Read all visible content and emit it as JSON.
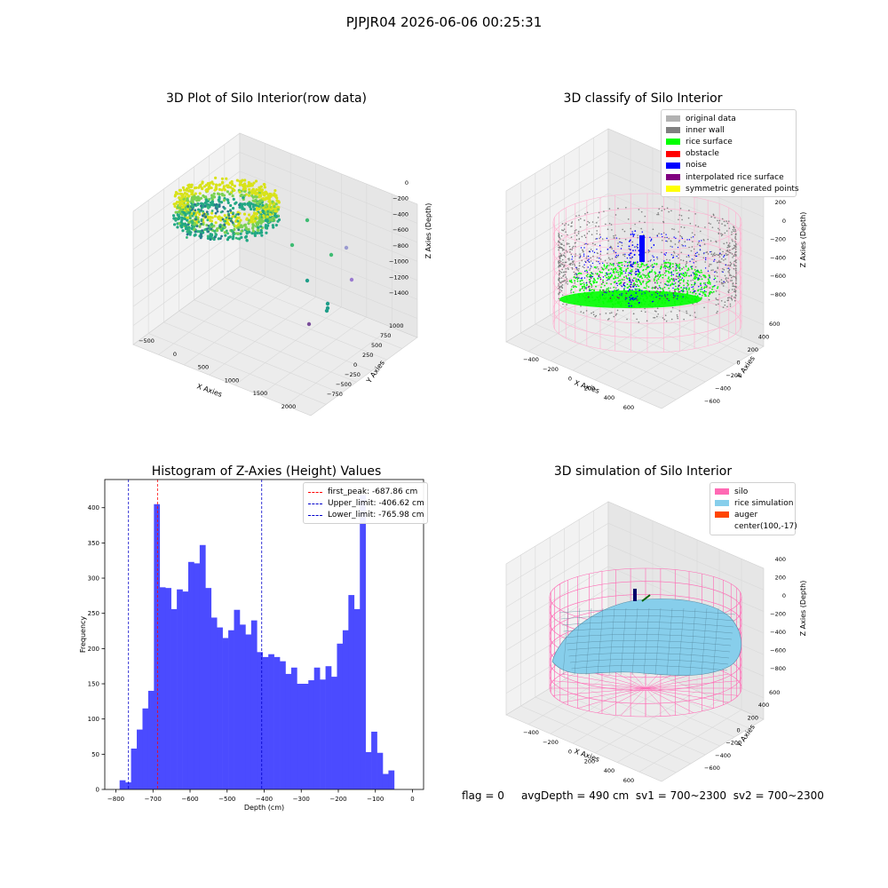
{
  "suptitle": "PJPJR04 2026-06-06 00:25:31",
  "status": {
    "flag": "flag = 0",
    "avg_depth": "avgDepth = 490 cm",
    "sv1": "sv1 = 700~2300",
    "sv2": "sv2 = 700~2300"
  },
  "colors": {
    "original_data": "#b2b2b2",
    "inner_wall": "#808080",
    "rice_surface": "#00ff00",
    "obstacle": "#ff0000",
    "noise": "#0000ff",
    "interpolated_rice_surface": "#800080",
    "symmetric_generated_points": "#ffff00",
    "silo": "#ff69b4",
    "rice_simulation": "#87ceeb",
    "auger": "#ff4500",
    "histogram_bars": "#4b4bff",
    "first_peak_line": "#ff0000",
    "limit_lines": "#0000cc"
  },
  "panels": {
    "raw": {
      "title": "3D Plot of Silo Interior(row data)",
      "xlabel": "X Axies",
      "ylabel": "Y Axies",
      "zlabel": "Z Axies (Depth)",
      "xticks": [
        "-500",
        "0",
        "500",
        "1000",
        "1500",
        "2000"
      ],
      "yticks": [
        "-750",
        "-500",
        "-250",
        "0",
        "250",
        "500",
        "750",
        "1000"
      ],
      "zticks": [
        "0",
        "-200",
        "-400",
        "-600",
        "-800",
        "-1000",
        "-1200",
        "-1400"
      ]
    },
    "classify": {
      "title": "3D classify of Silo Interior",
      "xlabel": "X Axies",
      "ylabel": "Y Axies",
      "zlabel": "Z Axies (Depth)",
      "xticks": [
        "-400",
        "-200",
        "0",
        "200",
        "400",
        "600"
      ],
      "yticks": [
        "-600",
        "-400",
        "-200",
        "0",
        "200",
        "400",
        "600"
      ],
      "zticks": [
        "200",
        "0",
        "-200",
        "-400",
        "-600",
        "-800"
      ],
      "ztick_partial": "0",
      "legend": [
        {
          "label": "original data",
          "color_key": "original_data"
        },
        {
          "label": "inner wall",
          "color_key": "inner_wall"
        },
        {
          "label": "rice surface",
          "color_key": "rice_surface"
        },
        {
          "label": "obstacle",
          "color_key": "obstacle"
        },
        {
          "label": "noise",
          "color_key": "noise"
        },
        {
          "label": "interpolated rice surface",
          "color_key": "interpolated_rice_surface"
        },
        {
          "label": "symmetric generated points",
          "color_key": "symmetric_generated_points"
        }
      ]
    },
    "simulation": {
      "title": "3D simulation of Silo Interior",
      "xlabel": "X Axies",
      "ylabel": "Y Axies",
      "zlabel": "Z Axies (Depth)",
      "xticks": [
        "-400",
        "-200",
        "0",
        "200",
        "400",
        "600"
      ],
      "yticks": [
        "-600",
        "-400",
        "-200",
        "0",
        "200",
        "400",
        "600"
      ],
      "zticks": [
        "400",
        "200",
        "0",
        "-200",
        "-400",
        "-600",
        "-800"
      ],
      "legend": [
        {
          "label": "silo",
          "color_key": "silo"
        },
        {
          "label": "rice simulation",
          "color_key": "rice_simulation"
        },
        {
          "label": "auger",
          "color_key": "auger"
        },
        {
          "label": "center(100,-17)",
          "color_key": ""
        }
      ]
    }
  },
  "chart_data": {
    "type": "bar",
    "title": "Histogram of Z-Axies (Height) Values",
    "xlabel": "Depth (cm)",
    "ylabel": "Frequency",
    "xlim": [
      -830,
      30
    ],
    "ylim": [
      0,
      440
    ],
    "xticks": [
      -800,
      -700,
      -600,
      -500,
      -400,
      -300,
      -200,
      -100,
      0
    ],
    "yticks": [
      0,
      50,
      100,
      150,
      200,
      250,
      300,
      350,
      400
    ],
    "bin_start": -790,
    "bin_width": 15.43,
    "values": [
      13,
      10,
      58,
      85,
      115,
      140,
      405,
      287,
      286,
      256,
      284,
      281,
      323,
      321,
      347,
      286,
      244,
      230,
      215,
      226,
      255,
      234,
      220,
      240,
      195,
      188,
      192,
      188,
      182,
      164,
      173,
      150,
      150,
      155,
      173,
      156,
      175,
      160,
      207,
      226,
      276,
      256,
      418,
      53,
      82,
      52,
      22,
      27
    ],
    "vlines": [
      {
        "label": "first_peak: -687.86 cm",
        "value": -687.86,
        "color_key": "first_peak_line"
      },
      {
        "label": "Upper_limit: -406.62 cm",
        "value": -406.62,
        "color_key": "limit_lines"
      },
      {
        "label": "Lower_limit: -765.98 cm",
        "value": -765.98,
        "color_key": "limit_lines"
      }
    ],
    "legend_position": "upper right"
  }
}
